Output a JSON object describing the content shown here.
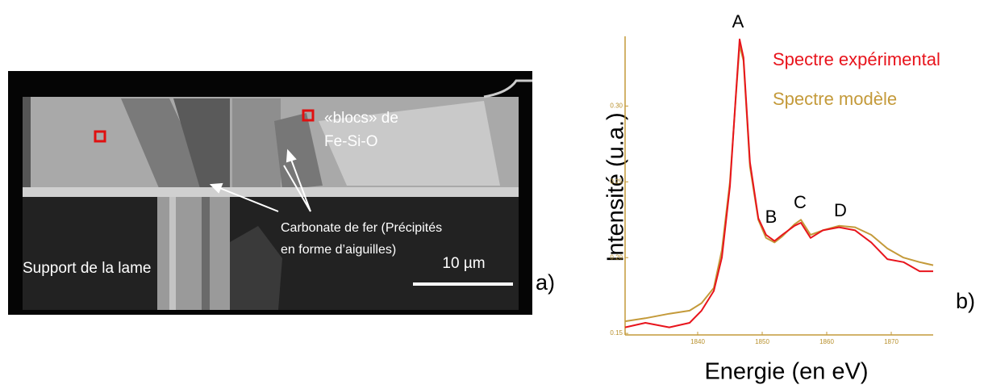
{
  "image_panel": {
    "blocks_label": [
      "«blocs» de",
      "Fe-Si-O"
    ],
    "carbonate_label": [
      "Carbonate de fer (Précipités",
      "en forme d’aiguilles)"
    ],
    "support_label": "Support de la lame",
    "scale_bar": "10 µm",
    "panel_label": "a)"
  },
  "chart_data": {
    "type": "line",
    "x_label": "Energie (en eV)",
    "y_label": "Intensité (u.a.)",
    "panel_label": "b)",
    "annotations": [
      "A",
      "B",
      "C",
      "D"
    ],
    "x": [
      1828.75,
      1831.9,
      1835.6,
      1838.75,
      1840.6,
      1842.5,
      1843.75,
      1845,
      1845.9,
      1846.5,
      1847.1,
      1848.1,
      1849.4,
      1850.6,
      1851.9,
      1853.1,
      1855,
      1856,
      1857.5,
      1859.4,
      1861.9,
      1864.4,
      1866.9,
      1869.4,
      1871.9,
      1874.4,
      1876.5
    ],
    "series": [
      {
        "name": "Spectre expérimental",
        "color": "#e8141c",
        "values": [
          0.154,
          0.157,
          0.154,
          0.157,
          0.165,
          0.178,
          0.2,
          0.247,
          0.306,
          0.344,
          0.332,
          0.263,
          0.226,
          0.215,
          0.211,
          0.215,
          0.221,
          0.223,
          0.213,
          0.218,
          0.22,
          0.218,
          0.21,
          0.199,
          0.197,
          0.191,
          0.191
        ]
      },
      {
        "name": "Spectre modèle",
        "color": "#c49a3a",
        "values": [
          0.158,
          0.16,
          0.163,
          0.165,
          0.17,
          0.18,
          0.205,
          0.25,
          0.305,
          0.34,
          0.33,
          0.26,
          0.225,
          0.213,
          0.21,
          0.214,
          0.222,
          0.225,
          0.215,
          0.218,
          0.221,
          0.22,
          0.215,
          0.206,
          0.2,
          0.197,
          0.195
        ]
      }
    ],
    "xlim": [
      1828.75,
      1876.5
    ],
    "ylim": [
      0.149,
      0.346
    ],
    "xticks": [
      1840,
      1850,
      1860,
      1870
    ],
    "yticks": [
      0.15,
      {
        "value": 0.2,
        "label": "0.20"
      },
      0.25,
      {
        "value": 0.3,
        "label": "0.30"
      }
    ]
  }
}
